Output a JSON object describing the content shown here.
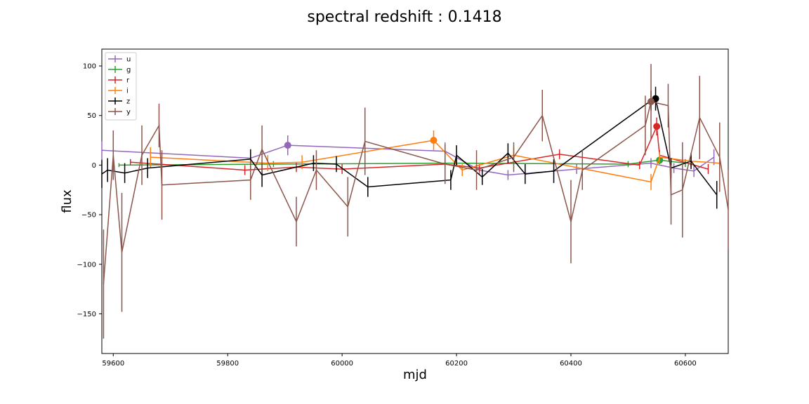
{
  "chart_data": {
    "type": "line",
    "title": "spectral redshift : 0.1418",
    "xlabel": "mjd",
    "ylabel": "flux",
    "xlim": [
      59580,
      60675
    ],
    "ylim": [
      -190,
      117
    ],
    "xticks": [
      59600,
      59800,
      60000,
      60200,
      60400,
      60600
    ],
    "yticks": [
      -150,
      -100,
      -50,
      0,
      50,
      100
    ],
    "grid": false,
    "legend_position": "top-left",
    "series": [
      {
        "name": "u",
        "color": "#9467bd",
        "points": [
          {
            "x": 59580,
            "y": 15,
            "e": 9
          },
          {
            "x": 59840,
            "y": 7,
            "e": 6
          },
          {
            "x": 59905,
            "y": 20,
            "e": 10
          },
          {
            "x": 60180,
            "y": 14,
            "e": 9
          },
          {
            "x": 60240,
            "y": -5,
            "e": 5
          },
          {
            "x": 60290,
            "y": -10,
            "e": 5
          },
          {
            "x": 60410,
            "y": -4,
            "e": 5
          },
          {
            "x": 60540,
            "y": 2,
            "e": 5
          },
          {
            "x": 60580,
            "y": -3,
            "e": 5
          },
          {
            "x": 60615,
            "y": -6,
            "e": 6
          },
          {
            "x": 60650,
            "y": 8,
            "e": 8
          }
        ],
        "highlight": {
          "x": 59905,
          "y": 20
        }
      },
      {
        "name": "g",
        "color": "#2ca02c",
        "points": [
          {
            "x": 59610,
            "y": 0,
            "e": 2
          },
          {
            "x": 59880,
            "y": 1,
            "e": 3
          },
          {
            "x": 60200,
            "y": 2,
            "e": 3
          },
          {
            "x": 60500,
            "y": 1,
            "e": 3
          },
          {
            "x": 60555,
            "y": 5,
            "e": 4
          },
          {
            "x": 60600,
            "y": 2,
            "e": 4
          }
        ],
        "highlight": {
          "x": 60555,
          "y": 5
        }
      },
      {
        "name": "r",
        "color": "#d62728",
        "points": [
          {
            "x": 59630,
            "y": 3,
            "e": 3
          },
          {
            "x": 59830,
            "y": -5,
            "e": 5
          },
          {
            "x": 59920,
            "y": -2,
            "e": 5
          },
          {
            "x": 60000,
            "y": -4,
            "e": 5
          },
          {
            "x": 60180,
            "y": 1,
            "e": 4
          },
          {
            "x": 60240,
            "y": -3,
            "e": 4
          },
          {
            "x": 60380,
            "y": 11,
            "e": 5
          },
          {
            "x": 60520,
            "y": 0,
            "e": 4
          },
          {
            "x": 60550,
            "y": 39,
            "e": 9
          },
          {
            "x": 60555,
            "y": 10,
            "e": 5
          },
          {
            "x": 60640,
            "y": -4,
            "e": 5
          }
        ],
        "highlight": {
          "x": 60550,
          "y": 39
        }
      },
      {
        "name": "i",
        "color": "#ff7f0e",
        "points": [
          {
            "x": 59665,
            "y": 8,
            "e": 10
          },
          {
            "x": 59870,
            "y": 2,
            "e": 8
          },
          {
            "x": 59930,
            "y": 3,
            "e": 7
          },
          {
            "x": 60160,
            "y": 25,
            "e": 10
          },
          {
            "x": 60210,
            "y": -5,
            "e": 6
          },
          {
            "x": 60300,
            "y": 10,
            "e": 8
          },
          {
            "x": 60540,
            "y": -17,
            "e": 8
          },
          {
            "x": 60555,
            "y": 8,
            "e": 6
          },
          {
            "x": 60610,
            "y": 4,
            "e": 6
          },
          {
            "x": 60660,
            "y": 2,
            "e": 6
          }
        ],
        "highlight": {
          "x": 60160,
          "y": 25
        }
      },
      {
        "name": "z",
        "color": "#000000",
        "points": [
          {
            "x": 59580,
            "y": -9,
            "e": 14
          },
          {
            "x": 59590,
            "y": -5,
            "e": 12
          },
          {
            "x": 59620,
            "y": -8,
            "e": 10
          },
          {
            "x": 59660,
            "y": -3,
            "e": 10
          },
          {
            "x": 59840,
            "y": 6,
            "e": 10
          },
          {
            "x": 59860,
            "y": -10,
            "e": 12
          },
          {
            "x": 59950,
            "y": 2,
            "e": 8
          },
          {
            "x": 59990,
            "y": 1,
            "e": 8
          },
          {
            "x": 60045,
            "y": -22,
            "e": 10
          },
          {
            "x": 60190,
            "y": -15,
            "e": 10
          },
          {
            "x": 60200,
            "y": 10,
            "e": 10
          },
          {
            "x": 60245,
            "y": -12,
            "e": 8
          },
          {
            "x": 60290,
            "y": 12,
            "e": 10
          },
          {
            "x": 60320,
            "y": -9,
            "e": 10
          },
          {
            "x": 60370,
            "y": -6,
            "e": 12
          },
          {
            "x": 60540,
            "y": 65,
            "e": 10
          },
          {
            "x": 60548,
            "y": 67,
            "e": 12
          },
          {
            "x": 60575,
            "y": -3,
            "e": 10
          },
          {
            "x": 60610,
            "y": 4,
            "e": 8
          },
          {
            "x": 60655,
            "y": -30,
            "e": 14
          }
        ],
        "highlight": {
          "x": 60548,
          "y": 67
        }
      },
      {
        "name": "y",
        "color": "#8c564b",
        "points": [
          {
            "x": 59583,
            "y": -120,
            "e": 55
          },
          {
            "x": 59600,
            "y": 10,
            "e": 25
          },
          {
            "x": 59615,
            "y": -88,
            "e": 60
          },
          {
            "x": 59650,
            "y": 10,
            "e": 30
          },
          {
            "x": 59680,
            "y": 40,
            "e": 22
          },
          {
            "x": 59685,
            "y": -20,
            "e": 35
          },
          {
            "x": 59840,
            "y": -15,
            "e": 20
          },
          {
            "x": 59860,
            "y": 16,
            "e": 24
          },
          {
            "x": 59920,
            "y": -57,
            "e": 25
          },
          {
            "x": 59955,
            "y": -5,
            "e": 20
          },
          {
            "x": 60010,
            "y": -42,
            "e": 30
          },
          {
            "x": 60040,
            "y": 24,
            "e": 34
          },
          {
            "x": 60180,
            "y": 1,
            "e": 20
          },
          {
            "x": 60235,
            "y": -5,
            "e": 20
          },
          {
            "x": 60300,
            "y": 8,
            "e": 15
          },
          {
            "x": 60350,
            "y": 50,
            "e": 26
          },
          {
            "x": 60400,
            "y": -57,
            "e": 42
          },
          {
            "x": 60420,
            "y": -5,
            "e": 20
          },
          {
            "x": 60530,
            "y": 40,
            "e": 30
          },
          {
            "x": 60540,
            "y": 64,
            "e": 38
          },
          {
            "x": 60570,
            "y": 60,
            "e": 22
          },
          {
            "x": 60575,
            "y": -30,
            "e": 30
          },
          {
            "x": 60595,
            "y": -25,
            "e": 48
          },
          {
            "x": 60625,
            "y": 48,
            "e": 42
          },
          {
            "x": 60660,
            "y": 8,
            "e": 35
          },
          {
            "x": 60675,
            "y": -45,
            "e": 40
          }
        ],
        "highlight": {
          "x": 60540,
          "y": 64
        }
      }
    ]
  }
}
